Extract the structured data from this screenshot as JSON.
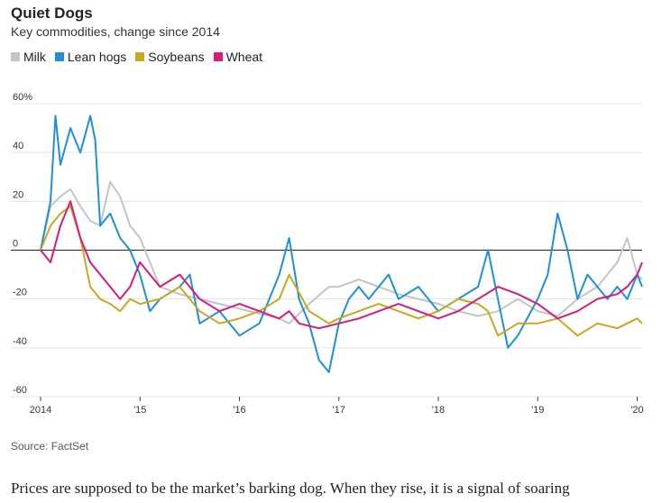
{
  "title": "Quiet Dogs",
  "subtitle": "Key commodities, change since 2014",
  "source": "Source: FactSet",
  "body_text": "Prices are supposed to be the market’s barking dog. When they rise, it is a signal of soaring",
  "colors": {
    "milk": "#c4c4c4",
    "lean_hogs": "#1e90d8",
    "soybeans": "#c8a81e",
    "wheat": "#d61b7c",
    "axis": "#222222",
    "grid": "#e3e3e3"
  },
  "chart_data": {
    "type": "line",
    "ylim": [
      -60,
      60
    ],
    "xlim": [
      2014.0,
      2020.05
    ],
    "y_ticks": [
      60,
      40,
      20,
      0,
      -20,
      -40,
      -60
    ],
    "y_tick_labels": [
      "60%",
      "40",
      "20",
      "0",
      "-20",
      "-40",
      "-60"
    ],
    "x_ticks": [
      2014,
      2015,
      2016,
      2017,
      2018,
      2019,
      2020
    ],
    "x_tick_labels": [
      "2014",
      "'15",
      "'16",
      "'17",
      "'18",
      "'19",
      "'20"
    ],
    "grid": true,
    "legend_position": "top-left",
    "series": [
      {
        "name": "Milk",
        "color": "#c4c4c4",
        "x": [
          2014.0,
          2014.1,
          2014.2,
          2014.3,
          2014.4,
          2014.5,
          2014.6,
          2014.7,
          2014.8,
          2014.9,
          2015.0,
          2015.2,
          2015.4,
          2015.6,
          2015.8,
          2016.0,
          2016.2,
          2016.4,
          2016.5,
          2016.7,
          2016.9,
          2017.0,
          2017.2,
          2017.4,
          2017.6,
          2017.8,
          2018.0,
          2018.2,
          2018.4,
          2018.6,
          2018.8,
          2019.0,
          2019.2,
          2019.4,
          2019.6,
          2019.8,
          2019.9,
          2020.0,
          2020.05
        ],
        "y": [
          0,
          18,
          22,
          25,
          18,
          12,
          10,
          28,
          22,
          10,
          5,
          -15,
          -18,
          -20,
          -22,
          -24,
          -26,
          -28,
          -30,
          -22,
          -15,
          -15,
          -12,
          -15,
          -18,
          -20,
          -22,
          -25,
          -27,
          -25,
          -20,
          -25,
          -27,
          -20,
          -15,
          -5,
          5,
          -10,
          -12
        ]
      },
      {
        "name": "Lean hogs",
        "color": "#1e90d8",
        "x": [
          2014.0,
          2014.1,
          2014.15,
          2014.2,
          2014.3,
          2014.4,
          2014.5,
          2014.55,
          2014.6,
          2014.7,
          2014.8,
          2014.9,
          2015.0,
          2015.1,
          2015.2,
          2015.4,
          2015.5,
          2015.6,
          2015.8,
          2016.0,
          2016.2,
          2016.3,
          2016.4,
          2016.5,
          2016.6,
          2016.7,
          2016.8,
          2016.9,
          2017.0,
          2017.1,
          2017.2,
          2017.3,
          2017.5,
          2017.6,
          2017.8,
          2018.0,
          2018.2,
          2018.4,
          2018.5,
          2018.6,
          2018.7,
          2018.8,
          2019.0,
          2019.1,
          2019.2,
          2019.3,
          2019.4,
          2019.5,
          2019.6,
          2019.7,
          2019.8,
          2019.9,
          2020.0,
          2020.05
        ],
        "y": [
          0,
          20,
          55,
          35,
          50,
          40,
          55,
          45,
          10,
          15,
          5,
          0,
          -10,
          -25,
          -20,
          -15,
          -10,
          -30,
          -25,
          -35,
          -30,
          -20,
          -10,
          5,
          -20,
          -30,
          -45,
          -50,
          -30,
          -20,
          -15,
          -20,
          -10,
          -20,
          -15,
          -25,
          -20,
          -15,
          0,
          -20,
          -40,
          -35,
          -20,
          -10,
          15,
          0,
          -20,
          -10,
          -15,
          -20,
          -15,
          -20,
          -10,
          -15
        ]
      },
      {
        "name": "Soybeans",
        "color": "#c8a81e",
        "x": [
          2014.0,
          2014.1,
          2014.2,
          2014.3,
          2014.4,
          2014.5,
          2014.6,
          2014.7,
          2014.8,
          2014.9,
          2015.0,
          2015.2,
          2015.4,
          2015.6,
          2015.8,
          2016.0,
          2016.2,
          2016.4,
          2016.5,
          2016.7,
          2016.9,
          2017.0,
          2017.2,
          2017.4,
          2017.6,
          2017.8,
          2018.0,
          2018.2,
          2018.4,
          2018.5,
          2018.6,
          2018.8,
          2019.0,
          2019.2,
          2019.4,
          2019.6,
          2019.8,
          2020.0,
          2020.05
        ],
        "y": [
          0,
          10,
          15,
          18,
          5,
          -15,
          -20,
          -22,
          -25,
          -20,
          -22,
          -20,
          -15,
          -25,
          -30,
          -28,
          -25,
          -20,
          -10,
          -25,
          -30,
          -28,
          -25,
          -22,
          -25,
          -28,
          -25,
          -20,
          -22,
          -25,
          -35,
          -30,
          -30,
          -28,
          -35,
          -30,
          -32,
          -28,
          -30
        ]
      },
      {
        "name": "Wheat",
        "color": "#d61b7c",
        "x": [
          2014.0,
          2014.1,
          2014.2,
          2014.3,
          2014.4,
          2014.5,
          2014.6,
          2014.7,
          2014.8,
          2014.9,
          2015.0,
          2015.2,
          2015.4,
          2015.6,
          2015.8,
          2016.0,
          2016.2,
          2016.4,
          2016.5,
          2016.6,
          2016.8,
          2017.0,
          2017.2,
          2017.4,
          2017.6,
          2017.8,
          2018.0,
          2018.2,
          2018.4,
          2018.6,
          2018.8,
          2019.0,
          2019.2,
          2019.4,
          2019.6,
          2019.8,
          2019.9,
          2020.0,
          2020.05
        ],
        "y": [
          0,
          -5,
          10,
          20,
          5,
          -5,
          -10,
          -15,
          -20,
          -15,
          -5,
          -15,
          -10,
          -20,
          -25,
          -22,
          -25,
          -28,
          -25,
          -30,
          -32,
          -30,
          -28,
          -25,
          -22,
          -25,
          -28,
          -25,
          -20,
          -15,
          -18,
          -22,
          -28,
          -25,
          -20,
          -18,
          -15,
          -10,
          -5
        ]
      }
    ]
  }
}
